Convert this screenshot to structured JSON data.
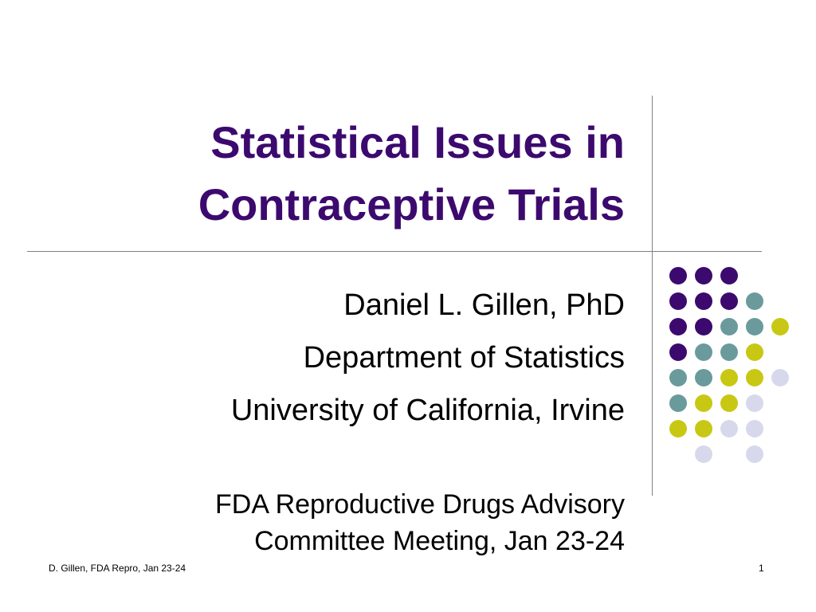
{
  "slide": {
    "title_lines": [
      "Statistical Issues in",
      "Contraceptive Trials"
    ],
    "author_lines": [
      "Daniel L. Gillen, PhD",
      "Department of Statistics",
      "University of California, Irvine"
    ],
    "meeting_lines": [
      "FDA Reproductive Drugs Advisory",
      "Committee Meeting, Jan 23-24"
    ],
    "footer_left": "D. Gillen, FDA Repro, Jan 23-24",
    "slide_number": "1"
  },
  "colors": {
    "title": "#3c0a6e",
    "purple": "#3c0a6e",
    "teal": "#6a9a9c",
    "yellow": "#c8c814",
    "lavender": "#d8d8ec",
    "rule": "#808080"
  },
  "decoration": {
    "dot_rows": [
      [
        "purple",
        "purple",
        "purple",
        null,
        null
      ],
      [
        "purple",
        "purple",
        "purple",
        "teal",
        null
      ],
      [
        "purple",
        "purple",
        "teal",
        "teal",
        "yellow"
      ],
      [
        "purple",
        "teal",
        "teal",
        "yellow",
        null
      ],
      [
        "teal",
        "teal",
        "yellow",
        "yellow",
        "lavender"
      ],
      [
        "teal",
        "yellow",
        "yellow",
        "lavender",
        null
      ],
      [
        "yellow",
        "yellow",
        "lavender",
        "lavender",
        null
      ],
      [
        null,
        "lavender",
        null,
        "lavender",
        null
      ]
    ]
  }
}
